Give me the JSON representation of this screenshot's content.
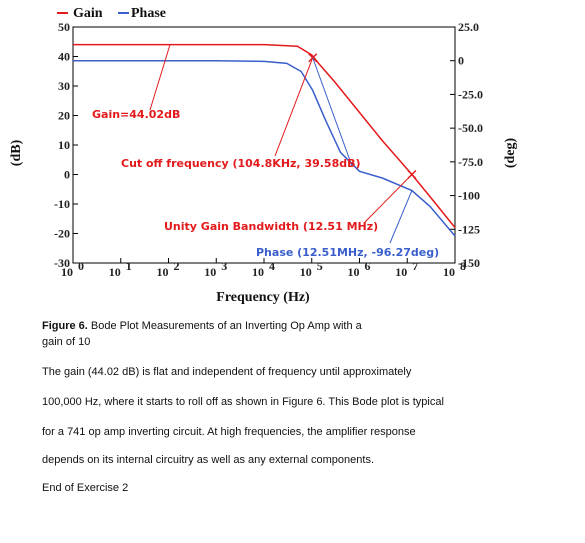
{
  "chart_data": {
    "type": "line",
    "x_scale": "log",
    "xlabel": "Frequency (Hz)",
    "ylabel_left": "(dB)",
    "ylabel_right": "(deg)",
    "xlim": [
      1,
      100000000
    ],
    "ylim_left": [
      -30,
      50
    ],
    "ylim_right": [
      -150,
      25
    ],
    "x_ticks": [
      {
        "base": "10",
        "exp": "0"
      },
      {
        "base": "10",
        "exp": "1"
      },
      {
        "base": "10",
        "exp": "2"
      },
      {
        "base": "10",
        "exp": "3"
      },
      {
        "base": "10",
        "exp": "4"
      },
      {
        "base": "10",
        "exp": "5"
      },
      {
        "base": "10",
        "exp": "6"
      },
      {
        "base": "10",
        "exp": "7"
      },
      {
        "base": "10",
        "exp": "8"
      }
    ],
    "y_ticks_left": [
      "50",
      "40",
      "30",
      "20",
      "10",
      "0",
      "-10",
      "-20",
      "-30"
    ],
    "y_ticks_right": [
      "25.0",
      "0",
      "-25.0",
      "-50.0",
      "-75.0",
      "-100",
      "-125",
      "-150"
    ],
    "legend": [
      {
        "name": "Gain",
        "color": "#e31a1c"
      },
      {
        "name": "Phase",
        "color": "#3a5fcd"
      }
    ],
    "series": [
      {
        "name": "Gain",
        "axis": "left",
        "color": "#e31a1c",
        "x": [
          1,
          10,
          100,
          1000,
          10000,
          50000,
          100000,
          150000,
          300000,
          1000000,
          3000000,
          12510000,
          30000000,
          100000000
        ],
        "y": [
          44.02,
          44.02,
          44.02,
          44.02,
          44.02,
          43.5,
          40.5,
          37.0,
          31.5,
          21.0,
          11.5,
          0,
          -7.5,
          -18.0
        ]
      },
      {
        "name": "Phase",
        "axis": "right",
        "color": "#3a5fcd",
        "x": [
          1,
          100,
          1000,
          10000,
          30000,
          60000,
          104800,
          200000,
          400000,
          1000000,
          3000000,
          12510000,
          30000000,
          100000000
        ],
        "y": [
          0,
          0,
          0,
          -0.5,
          -2,
          -8,
          -22,
          -45,
          -68,
          -82,
          -87,
          -96.27,
          -108,
          -130
        ]
      }
    ],
    "annotations": {
      "gain": "Gain=44.02dB",
      "cutoff": "Cut off frequency (104.8KHz, 39.58dB)",
      "unity": "Unity Gain Bandwidth (12.51 MHz)",
      "phase": "Phase (12.51MHz, -96.27deg)"
    }
  },
  "caption": {
    "label": "Figure 6.",
    "text": " Bode Plot Measurements of an Inverting Op Amp with a gain of 10"
  },
  "body_lines": [
    "The gain (44.02  dB) is flat and independent of frequency until approximately",
    "100,000 Hz, where it starts to roll off as shown in Figure 6. This Bode plot is typical",
    "for a 741 op amp inverting circuit. At high frequencies, the amplifier response",
    "depends on its internal circuitry as well as any external components.",
    "End of Exercise 2"
  ]
}
